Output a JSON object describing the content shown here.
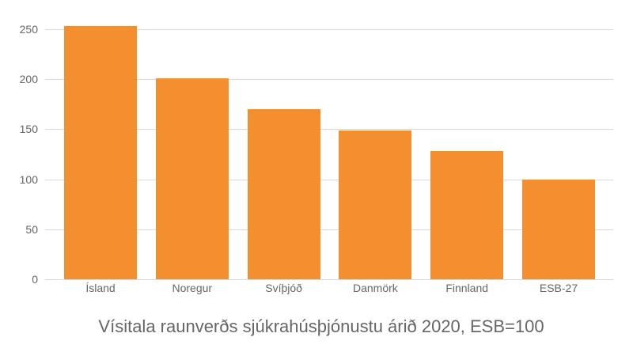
{
  "chart_data": {
    "type": "bar",
    "title": "Vísitala raunverðs sjúkrahúsþjónustu árið 2020, ESB=100",
    "xlabel": "",
    "ylabel": "",
    "categories": [
      "Ísland",
      "Noregur",
      "Svíþjóð",
      "Danmörk",
      "Finnland",
      "ESB-27"
    ],
    "values": [
      253,
      201,
      170,
      149,
      128,
      100
    ],
    "ylim": [
      0,
      250
    ],
    "yticks": [
      0,
      50,
      100,
      150,
      200,
      250
    ],
    "grid": true,
    "legend": null,
    "bar_color": "#f48f2f"
  }
}
